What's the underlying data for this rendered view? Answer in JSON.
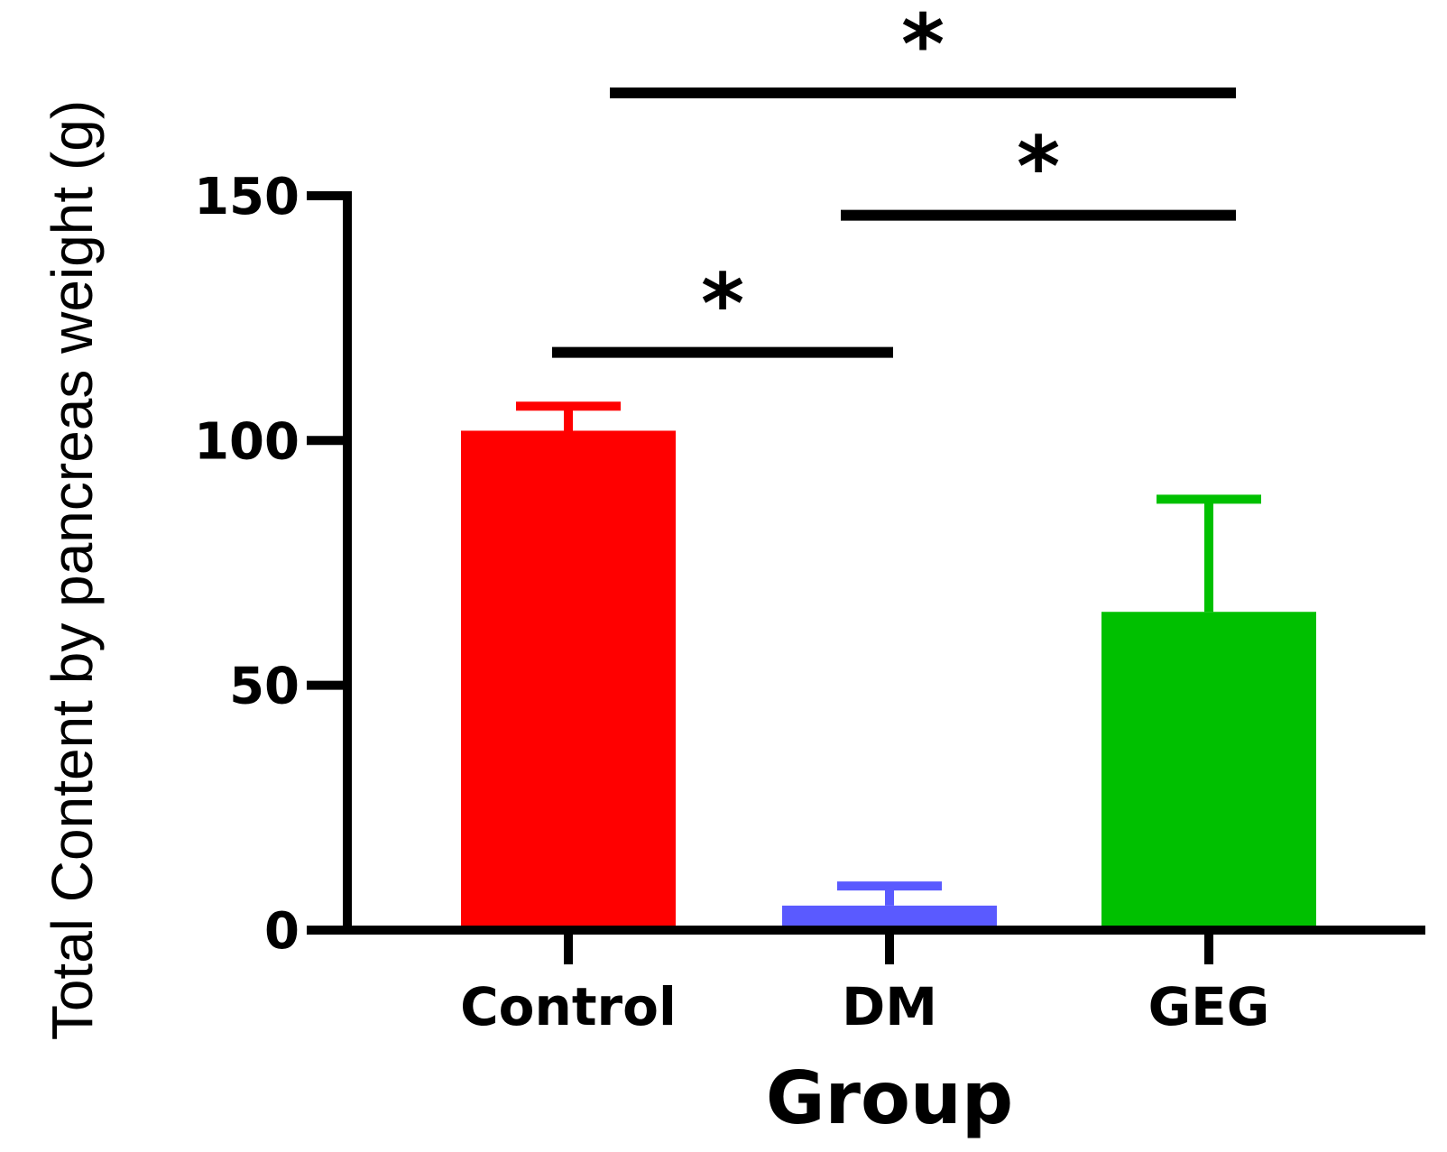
{
  "chart_data": {
    "type": "bar",
    "title": "",
    "xlabel": "Group",
    "ylabel": "Total Content by pancreas weight (g)",
    "categories": [
      "Control",
      "DM",
      "GEG"
    ],
    "values": [
      102,
      5,
      65
    ],
    "errors": [
      5,
      4,
      23
    ],
    "colors": [
      "#ff0000",
      "#5a5aff",
      "#00c000"
    ],
    "ylim": [
      0,
      150
    ],
    "yticks": [
      0,
      50,
      100,
      150
    ],
    "grid": false,
    "legend": "none",
    "significance": [
      {
        "from": "Control",
        "to": "DM",
        "level": 118,
        "label": "*"
      },
      {
        "from": "DM",
        "to": "GEG",
        "level": 146,
        "label": "*"
      },
      {
        "from": "Control",
        "to": "GEG",
        "level": 171,
        "label": "*"
      }
    ]
  }
}
